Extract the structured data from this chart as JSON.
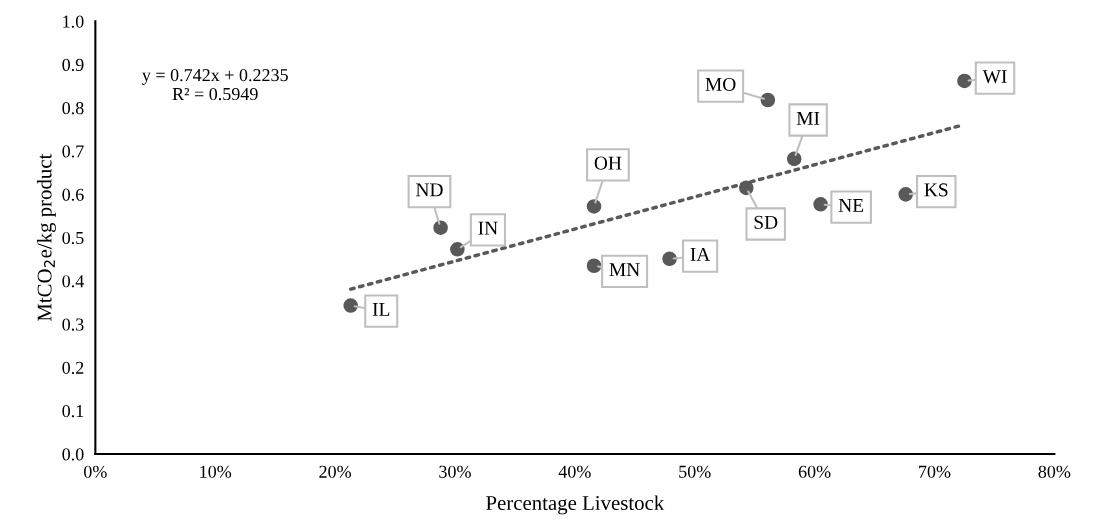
{
  "chart_data": {
    "type": "scatter",
    "xlabel": "Percentage Livestock",
    "ylabel": "MtCO$_{2}$e/kg product",
    "xlim": [
      0,
      80
    ],
    "ylim": [
      0,
      1.0
    ],
    "xticks": [
      {
        "value": 0,
        "label": "0%"
      },
      {
        "value": 10,
        "label": "10%"
      },
      {
        "value": 20,
        "label": "20%"
      },
      {
        "value": 30,
        "label": "30%"
      },
      {
        "value": 40,
        "label": "40%"
      },
      {
        "value": 50,
        "label": "50%"
      },
      {
        "value": 60,
        "label": "60%"
      },
      {
        "value": 70,
        "label": "70%"
      },
      {
        "value": 80,
        "label": "80%"
      }
    ],
    "yticks": [
      {
        "value": 0,
        "label": "0.0"
      },
      {
        "value": 0.1,
        "label": "0.1"
      },
      {
        "value": 0.2,
        "label": "0.2"
      },
      {
        "value": 0.3,
        "label": "0.3"
      },
      {
        "value": 0.4,
        "label": "0.4"
      },
      {
        "value": 0.5,
        "label": "0.5"
      },
      {
        "value": 0.6,
        "label": "0.6"
      },
      {
        "value": 0.7,
        "label": "0.7"
      },
      {
        "value": 0.8,
        "label": "0.8"
      },
      {
        "value": 0.9,
        "label": "0.9"
      },
      {
        "value": 1.0,
        "label": "1.0"
      }
    ],
    "grid": false,
    "marker": "circle",
    "series": [
      {
        "color": "#595959",
        "x": [
          21.3,
          28.8,
          30.2,
          41.6,
          41.6,
          47.9,
          54.3,
          58.3,
          56.1,
          72.5,
          60.5,
          67.6
        ],
        "values": [
          0.343,
          0.523,
          0.473,
          0.572,
          0.435,
          0.451,
          0.615,
          0.682,
          0.818,
          0.862,
          0.577,
          0.6
        ],
        "value_labels": [
          "IL",
          "ND",
          "IN",
          "OH",
          "MN",
          "IA",
          "SD",
          "MI",
          "MO",
          "WI",
          "NE",
          "KS"
        ]
      },
      {
        "type": "line",
        "color": "#595959",
        "line_style": "dotted",
        "marker": "none",
        "x": [
          21.3,
          72.2
        ],
        "values": [
          0.381,
          0.759
        ]
      }
    ],
    "annotations": [
      "y = 0.742x + 0.2235\nR² = 0.5949"
    ]
  }
}
